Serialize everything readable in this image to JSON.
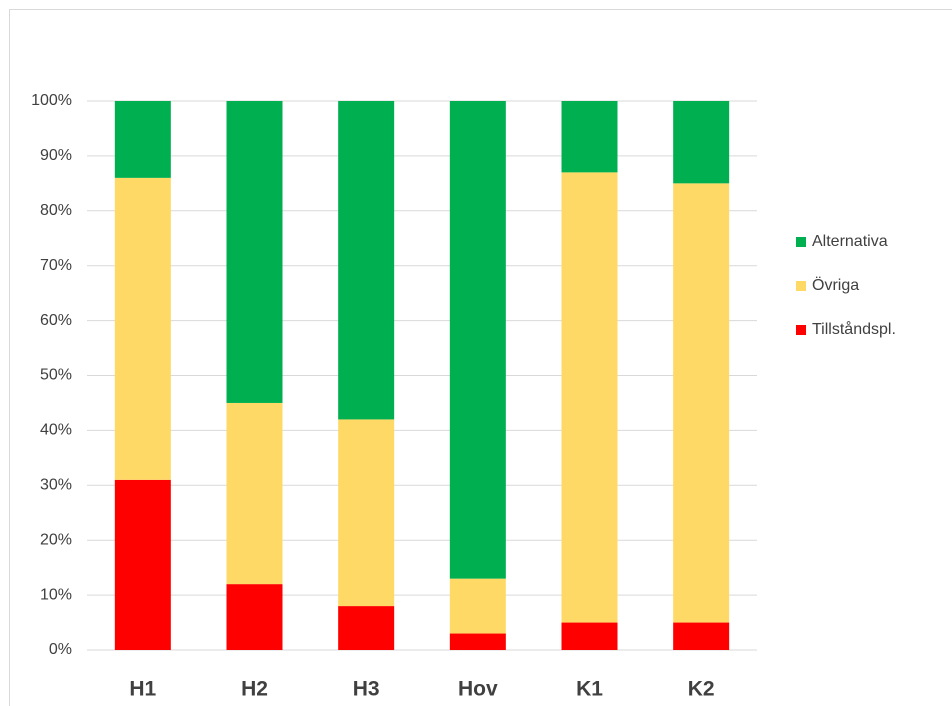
{
  "chart_data": {
    "type": "stacked_bar",
    "categories": [
      "H1",
      "H2",
      "H3",
      "Hov",
      "K1",
      "K2"
    ],
    "series": [
      {
        "name": "Tillståndspl.",
        "color": "#ff0000",
        "values": [
          31,
          12,
          8,
          3,
          5,
          5
        ]
      },
      {
        "name": "Övriga",
        "color": "#ffd966",
        "values": [
          55,
          33,
          34,
          10,
          82,
          80
        ]
      },
      {
        "name": "Alternativa",
        "color": "#00b050",
        "values": [
          14,
          55,
          58,
          87,
          13,
          15
        ]
      }
    ],
    "ylim": [
      0,
      100
    ],
    "yticks": [
      {
        "value": 0,
        "label": "0%"
      },
      {
        "value": 10,
        "label": "10%"
      },
      {
        "value": 20,
        "label": "20%"
      },
      {
        "value": 30,
        "label": "30%"
      },
      {
        "value": 40,
        "label": "40%"
      },
      {
        "value": 50,
        "label": "50%"
      },
      {
        "value": 60,
        "label": "60%"
      },
      {
        "value": 70,
        "label": "70%"
      },
      {
        "value": 80,
        "label": "80%"
      },
      {
        "value": 90,
        "label": "90%"
      },
      {
        "value": 100,
        "label": "100%"
      }
    ],
    "grid": true,
    "legend": "right"
  }
}
